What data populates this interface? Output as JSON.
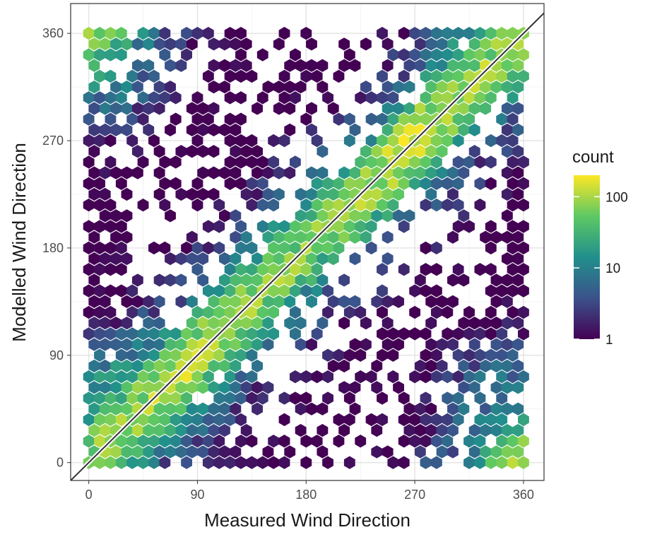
{
  "chart_data": {
    "type": "heatmap",
    "subtype": "hexbin",
    "title": "",
    "xlabel": "Measured Wind Direction",
    "ylabel": "Modelled Wind Direction",
    "xlim": [
      -15,
      377
    ],
    "ylim": [
      -15,
      385
    ],
    "xticks": [
      0,
      90,
      180,
      270,
      360
    ],
    "yticks": [
      0,
      90,
      180,
      270,
      360
    ],
    "grid": true,
    "reference_line": {
      "slope": 1,
      "intercept": 0,
      "color": "#333333"
    },
    "color_scale": {
      "name": "viridis",
      "scale": "log10",
      "range": [
        1,
        200
      ],
      "colors": [
        "#440154",
        "#3b528b",
        "#21908c",
        "#5dc863",
        "#fde725"
      ]
    },
    "legend": {
      "title": "count",
      "placement": "right",
      "breaks": [
        100,
        10,
        1
      ],
      "labels": [
        "100",
        "10",
        "1"
      ]
    },
    "hex_grid": {
      "x_step": 9,
      "y_step": 9,
      "x_range": [
        0,
        360
      ],
      "y_range": [
        0,
        360
      ],
      "note_counts": "counts per hexagon estimated from colour; concentrated along the y=x diagonal with a broad low-count background"
    }
  }
}
